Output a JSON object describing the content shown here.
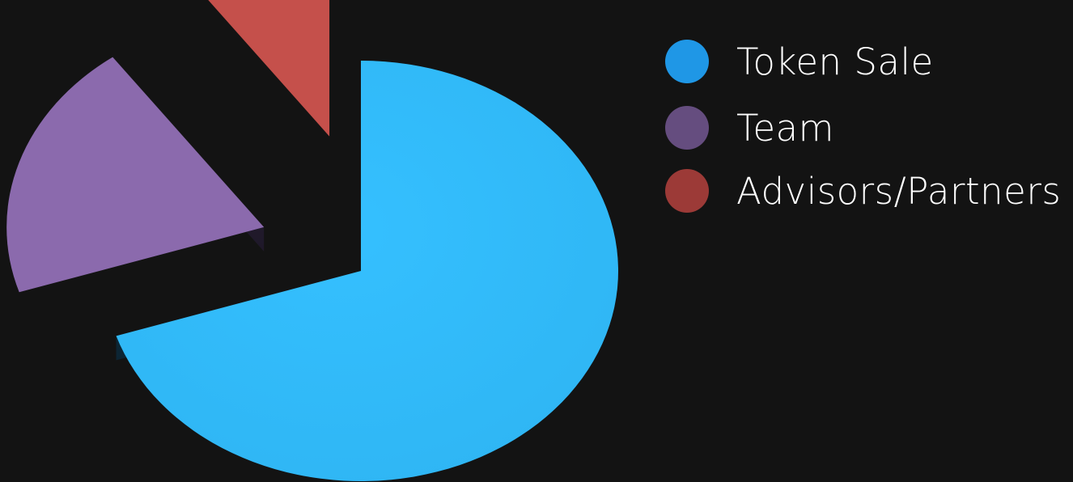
{
  "chart_data": {
    "type": "pie",
    "style": "3d-exploded",
    "categories": [
      "Token Sale",
      "Team",
      "Advisors/Partners"
    ],
    "values": [
      70,
      20,
      10
    ],
    "unit": "%",
    "colors": [
      "#33bbff",
      "#8b6aad",
      "#c5504b"
    ],
    "legend_colors": [
      "#1f97e6",
      "#654d7f",
      "#9c3a37"
    ],
    "legend_position": "right",
    "title": "",
    "background": "#131313"
  }
}
